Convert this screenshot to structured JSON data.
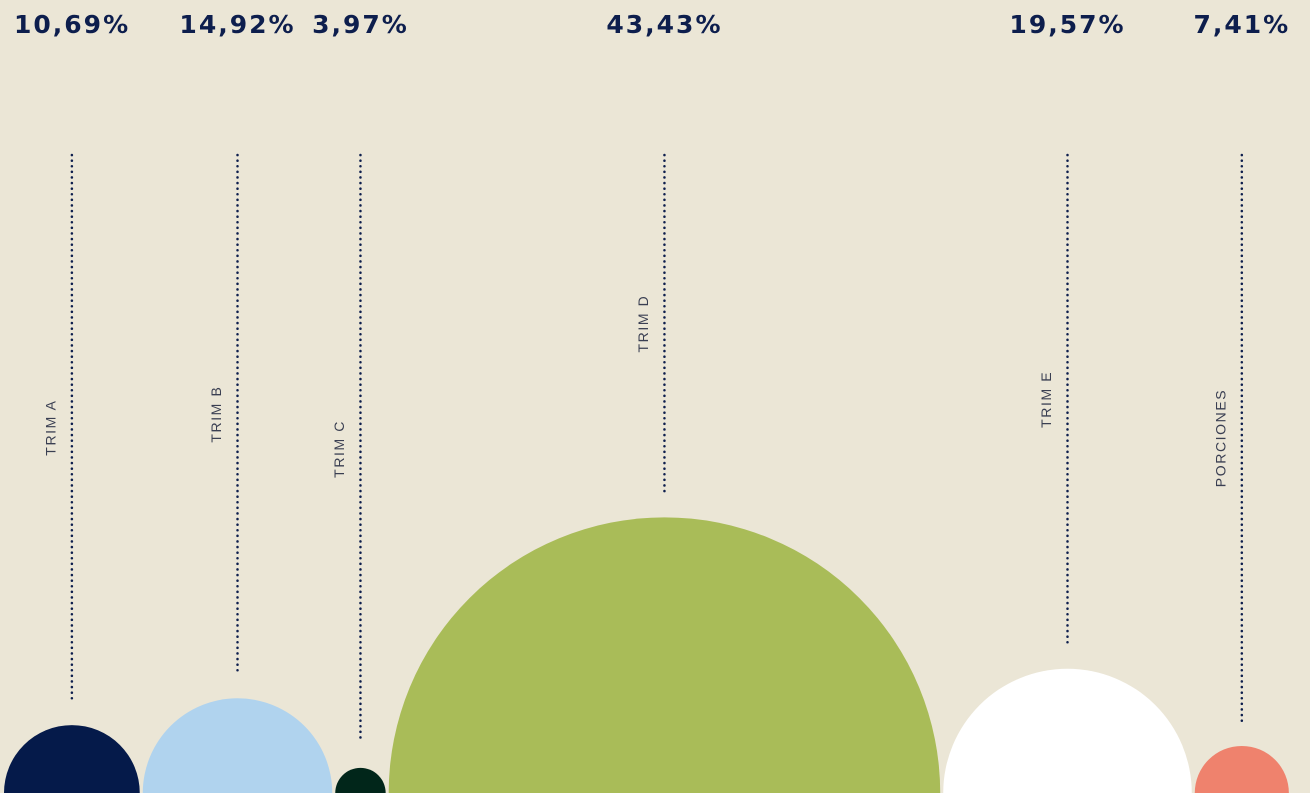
{
  "chart_data": {
    "type": "semicircle",
    "categories": [
      "TRIM A",
      "TRIM B",
      "TRIM C",
      "TRIM D",
      "TRIM E",
      "PORCIONES"
    ],
    "values": [
      10.69,
      14.92,
      3.97,
      43.43,
      19.57,
      7.41
    ],
    "value_labels": [
      "10,69%",
      "14,92%",
      "3,97%",
      "43,43%",
      "19,57%",
      "7,41%"
    ],
    "colors": [
      "#051a4a",
      "#b0d3ee",
      "#01261a",
      "#a9bc58",
      "#ffffff",
      "#ef826d"
    ]
  }
}
